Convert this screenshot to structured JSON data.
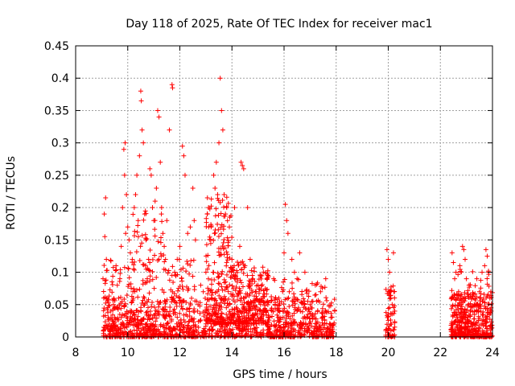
{
  "chart_data": {
    "type": "scatter",
    "title": "Day 118 of 2025, Rate Of TEC Index for receiver mac1",
    "xlabel": "GPS time / hours",
    "ylabel": "ROTI / TECUs",
    "xlim": [
      8,
      24
    ],
    "ylim": [
      0,
      0.45
    ],
    "xticks": [
      8,
      10,
      12,
      14,
      16,
      18,
      20,
      22,
      24
    ],
    "yticks": [
      0,
      0.05,
      0.1,
      0.15,
      0.2,
      0.25,
      0.3,
      0.35,
      0.4,
      0.45
    ],
    "xtick_labels": [
      "8",
      "10",
      "12",
      "14",
      "16",
      "18",
      "20",
      "22",
      "24"
    ],
    "ytick_labels": [
      "0",
      "0.05",
      "0.1",
      "0.15",
      "0.2",
      "0.25",
      "0.3",
      "0.35",
      "0.4",
      "0.45"
    ],
    "grid": true,
    "marker": "+",
    "color": "#ff0000",
    "series": [
      {
        "name": "mac1",
        "points": [
          [
            9.1,
            0.19
          ],
          [
            9.15,
            0.215
          ],
          [
            9.12,
            0.155
          ],
          [
            9.18,
            0.12
          ],
          [
            9.05,
            0.09
          ],
          [
            9.2,
            0.06
          ],
          [
            9.25,
            0.03
          ],
          [
            9.3,
            0.02
          ],
          [
            9.35,
            0.04
          ],
          [
            9.4,
            0.015
          ],
          [
            9.45,
            0.05
          ],
          [
            9.5,
            0.03
          ],
          [
            9.55,
            0.11
          ],
          [
            9.6,
            0.08
          ],
          [
            9.65,
            0.06
          ],
          [
            9.7,
            0.09
          ],
          [
            9.75,
            0.14
          ],
          [
            9.8,
            0.2
          ],
          [
            9.85,
            0.29
          ],
          [
            9.9,
            0.3
          ],
          [
            9.88,
            0.25
          ],
          [
            9.92,
            0.16
          ],
          [
            9.95,
            0.22
          ],
          [
            10.0,
            0.17
          ],
          [
            10.05,
            0.15
          ],
          [
            10.1,
            0.13
          ],
          [
            10.15,
            0.04
          ],
          [
            10.2,
            0.07
          ],
          [
            10.25,
            0.2
          ],
          [
            10.3,
            0.22
          ],
          [
            10.35,
            0.25
          ],
          [
            10.4,
            0.18
          ],
          [
            10.45,
            0.28
          ],
          [
            10.5,
            0.38
          ],
          [
            10.52,
            0.365
          ],
          [
            10.55,
            0.32
          ],
          [
            10.6,
            0.3
          ],
          [
            10.65,
            0.19
          ],
          [
            10.7,
            0.15
          ],
          [
            10.75,
            0.09
          ],
          [
            10.8,
            0.12
          ],
          [
            10.85,
            0.26
          ],
          [
            10.9,
            0.25
          ],
          [
            10.95,
            0.2
          ],
          [
            11.0,
            0.18
          ],
          [
            11.05,
            0.21
          ],
          [
            11.1,
            0.23
          ],
          [
            11.15,
            0.35
          ],
          [
            11.2,
            0.34
          ],
          [
            11.25,
            0.27
          ],
          [
            11.3,
            0.2
          ],
          [
            11.35,
            0.16
          ],
          [
            11.4,
            0.14
          ],
          [
            11.45,
            0.12
          ],
          [
            11.5,
            0.18
          ],
          [
            11.6,
            0.32
          ],
          [
            11.7,
            0.39
          ],
          [
            11.72,
            0.385
          ],
          [
            11.8,
            0.1
          ],
          [
            11.9,
            0.12
          ],
          [
            12.0,
            0.14
          ],
          [
            12.1,
            0.295
          ],
          [
            12.15,
            0.28
          ],
          [
            12.2,
            0.25
          ],
          [
            12.3,
            0.16
          ],
          [
            12.4,
            0.17
          ],
          [
            12.5,
            0.23
          ],
          [
            12.55,
            0.18
          ],
          [
            12.6,
            0.15
          ],
          [
            12.7,
            0.05
          ],
          [
            12.8,
            0.08
          ],
          [
            12.9,
            0.07
          ],
          [
            13.0,
            0.1
          ],
          [
            13.05,
            0.19
          ],
          [
            13.1,
            0.2
          ],
          [
            13.2,
            0.17
          ],
          [
            13.3,
            0.25
          ],
          [
            13.35,
            0.23
          ],
          [
            13.4,
            0.27
          ],
          [
            13.45,
            0.22
          ],
          [
            13.5,
            0.3
          ],
          [
            13.55,
            0.4
          ],
          [
            13.6,
            0.35
          ],
          [
            13.65,
            0.32
          ],
          [
            13.7,
            0.22
          ],
          [
            13.75,
            0.19
          ],
          [
            13.8,
            0.2
          ],
          [
            13.9,
            0.17
          ],
          [
            14.0,
            0.12
          ],
          [
            14.1,
            0.2
          ],
          [
            14.2,
            0.09
          ],
          [
            14.3,
            0.14
          ],
          [
            14.35,
            0.27
          ],
          [
            14.4,
            0.265
          ],
          [
            14.45,
            0.26
          ],
          [
            14.5,
            0.11
          ],
          [
            14.6,
            0.2
          ],
          [
            14.7,
            0.12
          ],
          [
            14.8,
            0.09
          ],
          [
            14.9,
            0.07
          ],
          [
            15.0,
            0.08
          ],
          [
            15.1,
            0.05
          ],
          [
            15.2,
            0.04
          ],
          [
            15.4,
            0.03
          ],
          [
            15.6,
            0.09
          ],
          [
            15.8,
            0.06
          ],
          [
            16.0,
            0.13
          ],
          [
            16.05,
            0.205
          ],
          [
            16.1,
            0.18
          ],
          [
            16.15,
            0.16
          ],
          [
            16.2,
            0.07
          ],
          [
            16.3,
            0.12
          ],
          [
            16.4,
            0.1
          ],
          [
            16.5,
            0.09
          ],
          [
            16.6,
            0.13
          ],
          [
            16.8,
            0.1
          ],
          [
            17.0,
            0.05
          ],
          [
            17.2,
            0.08
          ],
          [
            17.4,
            0.07
          ],
          [
            17.6,
            0.09
          ],
          [
            17.8,
            0.03
          ],
          [
            19.95,
            0.135
          ],
          [
            20.0,
            0.12
          ],
          [
            20.05,
            0.1
          ],
          [
            20.1,
            0.06
          ],
          [
            20.15,
            0.05
          ],
          [
            20.2,
            0.13
          ],
          [
            20.25,
            0.04
          ],
          [
            22.45,
            0.13
          ],
          [
            22.5,
            0.115
          ],
          [
            22.55,
            0.09
          ],
          [
            22.6,
            0.1
          ],
          [
            22.65,
            0.06
          ],
          [
            22.7,
            0.07
          ],
          [
            22.75,
            0.11
          ],
          [
            22.8,
            0.05
          ],
          [
            22.85,
            0.14
          ],
          [
            22.9,
            0.135
          ],
          [
            22.95,
            0.12
          ],
          [
            23.0,
            0.09
          ],
          [
            23.1,
            0.08
          ],
          [
            23.2,
            0.06
          ],
          [
            23.3,
            0.05
          ],
          [
            23.4,
            0.09
          ],
          [
            23.5,
            0.07
          ],
          [
            23.6,
            0.1
          ],
          [
            23.7,
            0.11
          ],
          [
            23.75,
            0.135
          ],
          [
            23.8,
            0.125
          ],
          [
            23.85,
            0.1
          ],
          [
            23.9,
            0.06
          ],
          [
            23.95,
            0.04
          ]
        ],
        "dense_clusters": [
          {
            "x_range": [
              9.05,
              17.95
            ],
            "y_range": [
              0.0,
              0.06
            ],
            "n": 900
          },
          {
            "x_range": [
              9.05,
              10.2
            ],
            "y_range": [
              0.0,
              0.12
            ],
            "n": 120
          },
          {
            "x_range": [
              10.2,
              11.4
            ],
            "y_range": [
              0.0,
              0.2
            ],
            "n": 140
          },
          {
            "x_range": [
              11.4,
              12.6
            ],
            "y_range": [
              0.0,
              0.12
            ],
            "n": 110
          },
          {
            "x_range": [
              13.0,
              14.0
            ],
            "y_range": [
              0.02,
              0.22
            ],
            "n": 220
          },
          {
            "x_range": [
              14.0,
              15.4
            ],
            "y_range": [
              0.02,
              0.12
            ],
            "n": 260
          },
          {
            "x_range": [
              15.4,
              17.9
            ],
            "y_range": [
              0.0,
              0.09
            ],
            "n": 200
          },
          {
            "x_range": [
              19.9,
              20.25
            ],
            "y_range": [
              0.0,
              0.08
            ],
            "n": 70
          },
          {
            "x_range": [
              22.4,
              24.0
            ],
            "y_range": [
              0.0,
              0.07
            ],
            "n": 380
          },
          {
            "x_range": [
              22.4,
              24.0
            ],
            "y_range": [
              0.0,
              0.11
            ],
            "n": 80
          }
        ]
      }
    ]
  }
}
